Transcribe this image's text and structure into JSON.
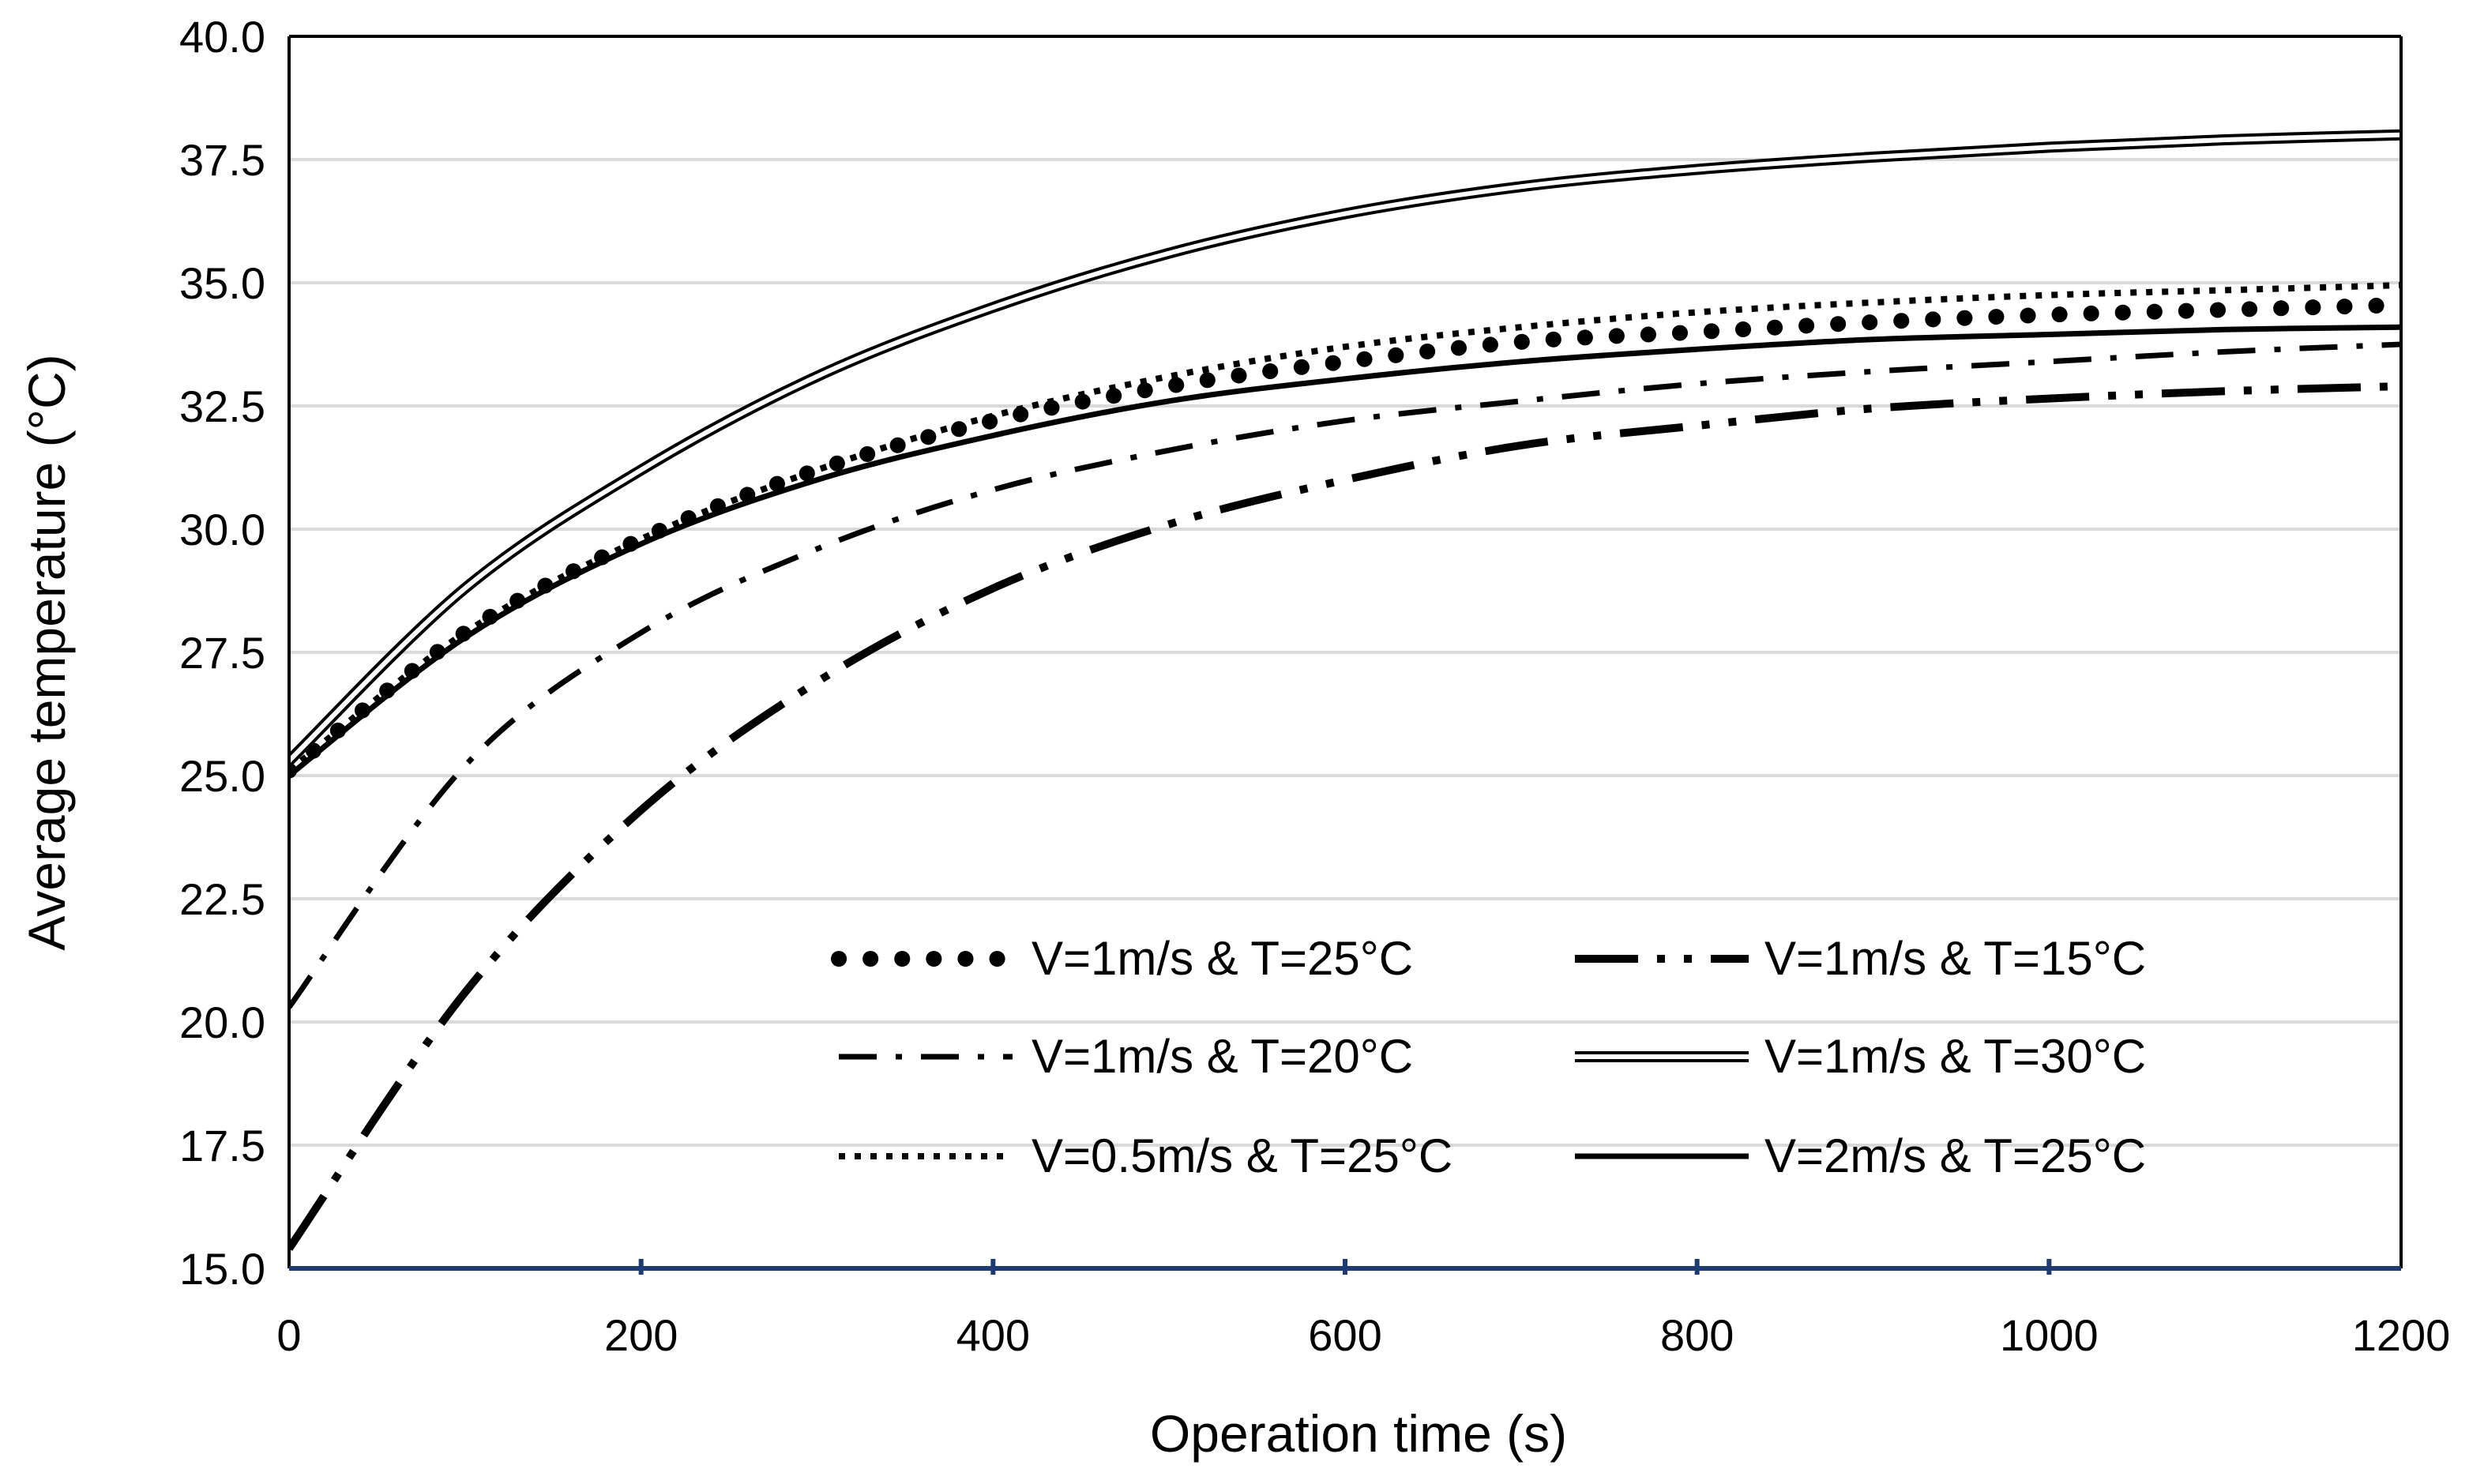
{
  "chart_data": {
    "type": "line",
    "title": "",
    "xlabel": "Operation time (s)",
    "ylabel": "Average temperature (°C)",
    "xlim": [
      0,
      1200
    ],
    "ylim": [
      15,
      40
    ],
    "x_ticks": [
      0,
      200,
      400,
      600,
      800,
      1000,
      1200
    ],
    "x_tick_labels": [
      "0",
      "200",
      "400",
      "600",
      "800",
      "1000",
      "1200"
    ],
    "y_ticks": [
      15,
      17.5,
      20,
      22.5,
      25,
      27.5,
      30,
      32.5,
      35,
      37.5,
      40
    ],
    "y_tick_labels": [
      "15.0",
      "17.5",
      "20.0",
      "22.5",
      "25.0",
      "27.5",
      "30.0",
      "32.5",
      "35.0",
      "37.5",
      "40.0"
    ],
    "grid": "horizontal",
    "legend_position": "bottom-right",
    "x": [
      0,
      100,
      200,
      300,
      400,
      500,
      600,
      700,
      800,
      900,
      1000,
      1100,
      1200
    ],
    "series": [
      {
        "name": "V=1m/s & T=25°C",
        "style": "round-dots",
        "color": "#000000",
        "values": [
          25.1,
          27.9,
          29.8,
          31.2,
          32.2,
          32.9,
          33.4,
          33.8,
          34.0,
          34.2,
          34.35,
          34.45,
          34.55
        ]
      },
      {
        "name": "V=1m/s & T=15°C",
        "style": "long-dash-dot-dot",
        "color": "#000000",
        "values": [
          15.4,
          20.6,
          24.3,
          26.9,
          28.8,
          30.1,
          31.0,
          31.7,
          32.1,
          32.45,
          32.65,
          32.8,
          32.9
        ]
      },
      {
        "name": "V=1m/s & T=20°C",
        "style": "dash-dot",
        "color": "#000000",
        "values": [
          20.3,
          25.2,
          27.9,
          29.6,
          30.8,
          31.6,
          32.2,
          32.6,
          32.95,
          33.2,
          33.4,
          33.6,
          33.75
        ]
      },
      {
        "name": "V=1m/s & T=30°C",
        "style": "double-line",
        "color": "#000000",
        "values": [
          25.3,
          28.8,
          31.2,
          33.1,
          34.5,
          35.6,
          36.4,
          36.95,
          37.3,
          37.55,
          37.75,
          37.9,
          38.0
        ]
      },
      {
        "name": "V=0.5m/s & T=25°C",
        "style": "square-dots",
        "color": "#000000",
        "values": [
          25.1,
          27.9,
          29.8,
          31.2,
          32.3,
          33.1,
          33.7,
          34.1,
          34.4,
          34.6,
          34.75,
          34.85,
          34.95
        ]
      },
      {
        "name": "V=2m/s & T=25°C",
        "style": "solid",
        "color": "#000000",
        "values": [
          25.0,
          27.8,
          29.7,
          31.0,
          31.9,
          32.6,
          33.05,
          33.4,
          33.65,
          33.85,
          33.95,
          34.05,
          34.1
        ]
      }
    ],
    "legend_order": [
      0,
      1,
      2,
      3,
      4,
      5
    ],
    "colors": {
      "axis": "#1f3b73",
      "frame": "#000000",
      "grid": "#d9d9d9",
      "series": "#000000"
    }
  }
}
